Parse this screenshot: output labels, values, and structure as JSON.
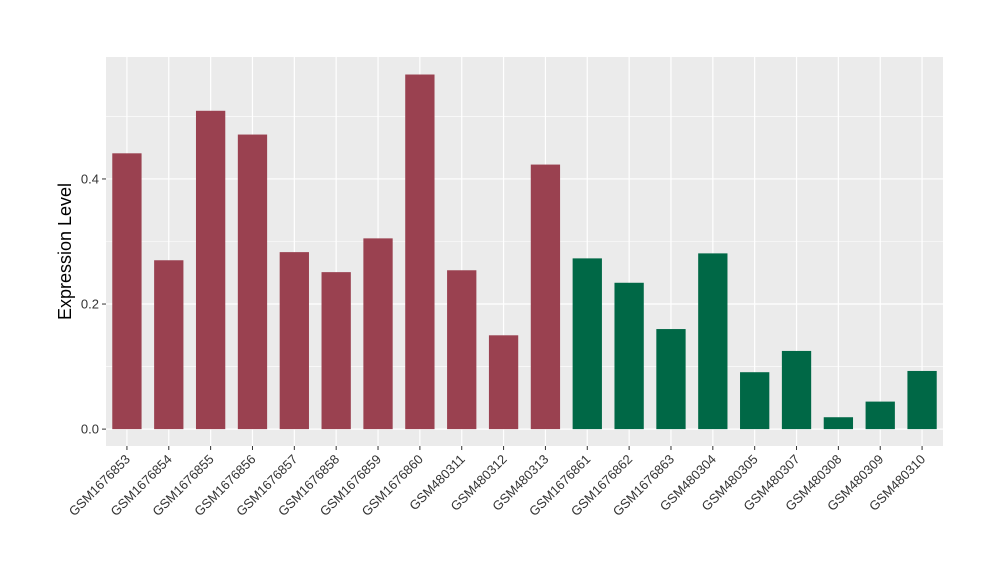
{
  "chart_data": {
    "type": "bar",
    "title": "",
    "xlabel": "",
    "ylabel": "Expression Level",
    "ylim": [
      -0.027,
      0.595
    ],
    "yticks": [
      0.0,
      0.2,
      0.4
    ],
    "ytick_labels": [
      "0.0",
      "0.2",
      "0.4"
    ],
    "grid": true,
    "legend": "none",
    "categories": [
      "GSM1676853",
      "GSM1676854",
      "GSM1676855",
      "GSM1676856",
      "GSM1676857",
      "GSM1676858",
      "GSM1676859",
      "GSM1676860",
      "GSM480311",
      "GSM480312",
      "GSM480313",
      "GSM1676861",
      "GSM1676862",
      "GSM1676863",
      "GSM480304",
      "GSM480305",
      "GSM480307",
      "GSM480308",
      "GSM480309",
      "GSM480310"
    ],
    "values": [
      0.441,
      0.27,
      0.509,
      0.471,
      0.283,
      0.251,
      0.305,
      0.567,
      0.254,
      0.15,
      0.423,
      0.273,
      0.234,
      0.16,
      0.281,
      0.091,
      0.125,
      0.019,
      0.044,
      0.093
    ],
    "group_index": [
      0,
      0,
      0,
      0,
      0,
      0,
      0,
      0,
      0,
      0,
      0,
      1,
      1,
      1,
      1,
      1,
      1,
      1,
      1,
      1
    ],
    "group_colors": [
      "#9a4150",
      "#006846"
    ],
    "panel_background": "#ebebeb",
    "grid_color": "#ffffff"
  }
}
